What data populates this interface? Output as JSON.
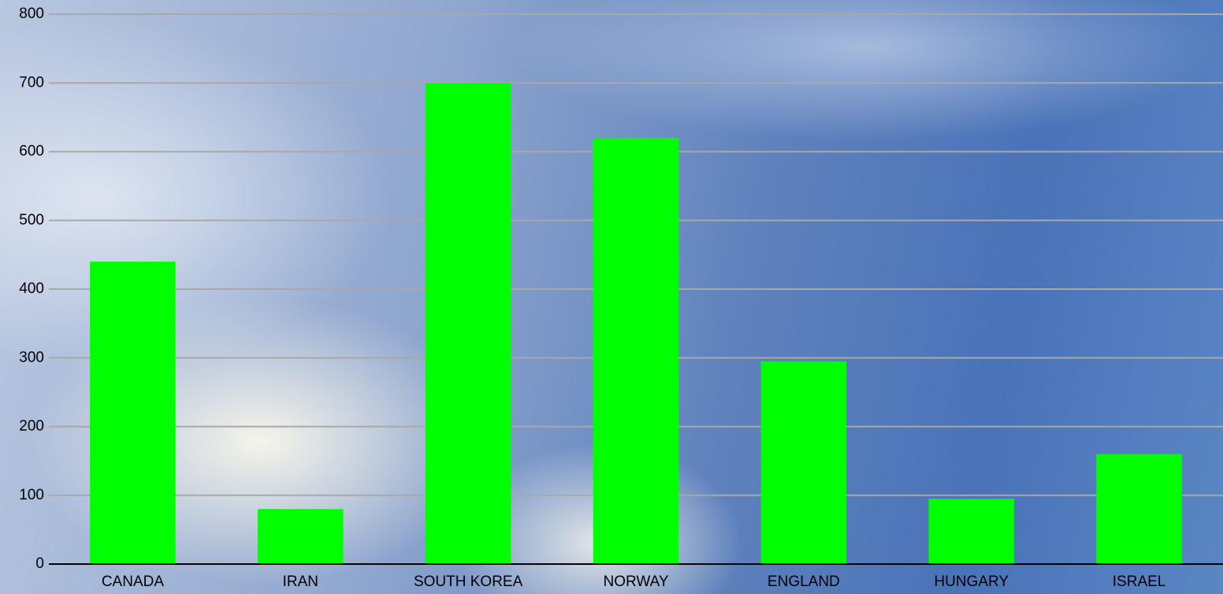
{
  "chart_data": {
    "type": "bar",
    "categories": [
      "CANADA",
      "IRAN",
      "SOUTH KOREA",
      "NORWAY",
      "ENGLAND",
      "HUNGARY",
      "ISRAEL"
    ],
    "values": [
      440,
      80,
      700,
      620,
      295,
      95,
      160
    ],
    "color": "#00ff00",
    "ylim": [
      0,
      800
    ],
    "yticks": [
      0,
      100,
      200,
      300,
      400,
      500,
      600,
      700,
      800
    ],
    "grid": true
  }
}
